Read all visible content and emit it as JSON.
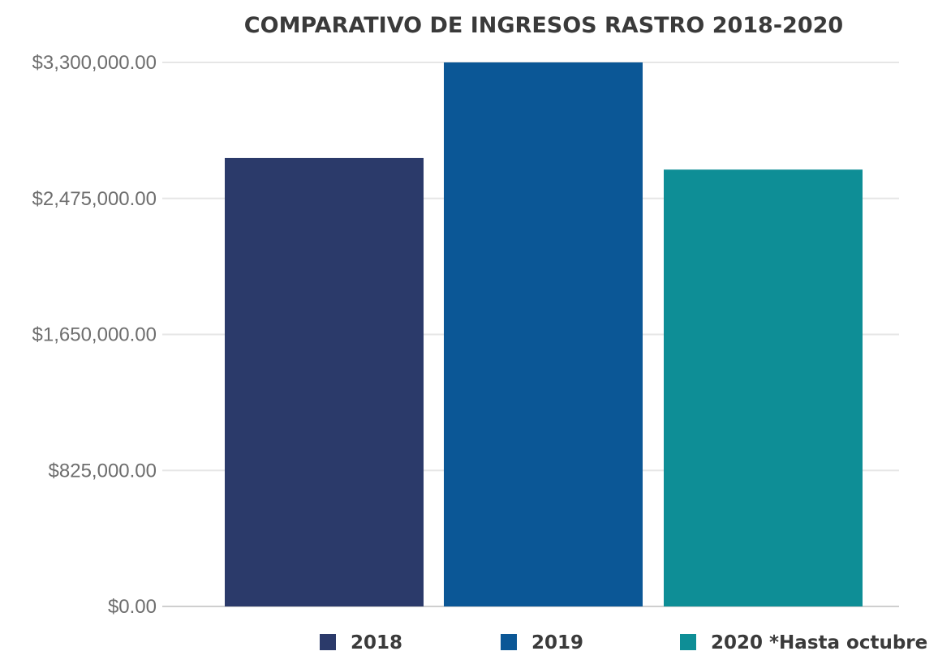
{
  "chart_data": {
    "type": "bar",
    "title": "COMPARATIVO DE INGRESOS RASTRO 2018-2020",
    "xlabel": "",
    "ylabel": "",
    "ylim": [
      0,
      3300000
    ],
    "yticks": [
      0,
      825000,
      1650000,
      2475000,
      3300000
    ],
    "ytick_labels": [
      "$0.00",
      "$825,000.00",
      "$1,650,000.00",
      "$2,475,000.00",
      "$3,300,000.00"
    ],
    "grid": true,
    "legend_position": "bottom-right",
    "series": [
      {
        "name": "2018",
        "value": 2720000,
        "color": "#2b3a6a"
      },
      {
        "name": "2019",
        "value": 3300000,
        "color": "#0b5796"
      },
      {
        "name": "2020 *Hasta octubre",
        "value": 2650000,
        "color": "#0e8e96"
      }
    ]
  }
}
